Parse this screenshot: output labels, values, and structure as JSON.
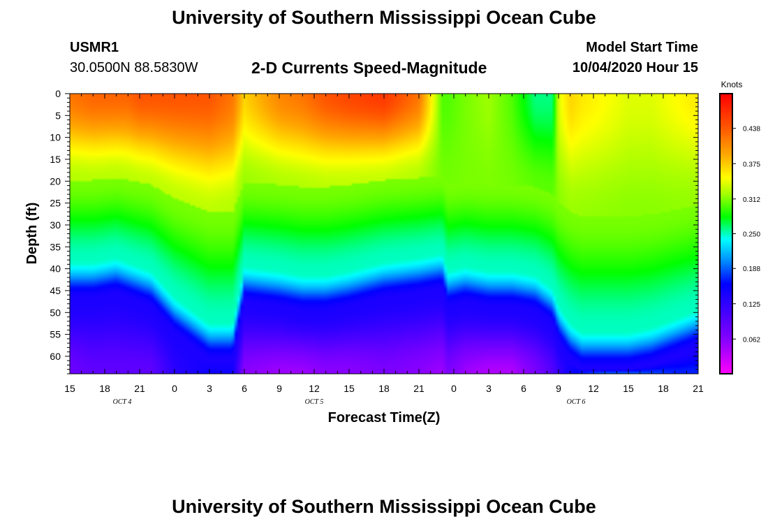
{
  "header": {
    "title_top": "University of Southern Mississippi Ocean Cube",
    "title_bottom": "University of Southern Mississippi Ocean Cube",
    "station_id": "USMR1",
    "coords": "30.0500N 88.5830W",
    "subtitle": "2-D Currents Speed-Magnitude",
    "model_start_label": "Model Start Time",
    "model_start_value": "10/04/2020 Hour 15"
  },
  "chart_data": {
    "type": "heatmap",
    "title": "2-D Currents Speed-Magnitude",
    "xlabel": "Forecast Time(Z)",
    "ylabel": "Depth (ft)",
    "x_hours": [
      0,
      3,
      6,
      9,
      12,
      15,
      18,
      21,
      24,
      27,
      30,
      33,
      36,
      39,
      42,
      45,
      48,
      51,
      54
    ],
    "x_tick_labels": [
      "15",
      "18",
      "21",
      "0",
      "3",
      "6",
      "9",
      "12",
      "15",
      "18",
      "21",
      "0",
      "3",
      "6",
      "9",
      "12",
      "15",
      "18",
      "21"
    ],
    "x_range_hours": [
      0,
      54
    ],
    "date_labels": [
      {
        "text": "OCT 4",
        "hour": 4.5
      },
      {
        "text": "OCT 5",
        "hour": 21
      },
      {
        "text": "OCT 6",
        "hour": 43.5
      }
    ],
    "y_ticks": [
      0,
      5,
      10,
      15,
      20,
      25,
      30,
      35,
      40,
      45,
      50,
      55,
      60
    ],
    "y_tick_labels": [
      "0",
      "5",
      "10",
      "15",
      "20",
      "25",
      "30",
      "35",
      "40",
      "45",
      "50",
      "55",
      "60"
    ],
    "y_range_ft": [
      0,
      64
    ],
    "colorbar": {
      "unit": "Knots",
      "range": [
        0.0,
        0.5
      ],
      "ticks": [
        0.062,
        0.125,
        0.188,
        0.25,
        0.312,
        0.375,
        0.438
      ],
      "tick_labels": [
        "0.062",
        "0.125",
        "0.188",
        "0.250",
        "0.312",
        "0.375",
        "0.438"
      ]
    },
    "speed_profile": {
      "description": "surface speed, speed at 63 ft, and depth (ft) of the 0.25-knot transition, by forecast hour",
      "hours": [
        0,
        2,
        4,
        5,
        6,
        7,
        9,
        12,
        14,
        15,
        18,
        20,
        22,
        24,
        27,
        30,
        32,
        32.5,
        34,
        36,
        38,
        40,
        41.5,
        42,
        43,
        44,
        46,
        48,
        50,
        52,
        54
      ],
      "surface": [
        0.42,
        0.43,
        0.43,
        0.43,
        0.44,
        0.44,
        0.44,
        0.44,
        0.42,
        0.37,
        0.41,
        0.42,
        0.44,
        0.45,
        0.46,
        0.42,
        0.3,
        0.3,
        0.31,
        0.32,
        0.3,
        0.26,
        0.26,
        0.34,
        0.37,
        0.36,
        0.35,
        0.34,
        0.34,
        0.35,
        0.36
      ],
      "bottom": [
        0.08,
        0.09,
        0.09,
        0.09,
        0.09,
        0.09,
        0.13,
        0.15,
        0.15,
        0.06,
        0.05,
        0.05,
        0.06,
        0.06,
        0.07,
        0.06,
        0.05,
        0.07,
        0.05,
        0.04,
        0.04,
        0.07,
        0.1,
        0.12,
        0.15,
        0.17,
        0.19,
        0.19,
        0.18,
        0.17,
        0.17
      ],
      "transition_depth": [
        38,
        38,
        37,
        38,
        39,
        40,
        46,
        52,
        52,
        39,
        40,
        41,
        41,
        40,
        38,
        37,
        36,
        40,
        39,
        40,
        40,
        41,
        44,
        48,
        52,
        54,
        54,
        54,
        53,
        51,
        49
      ]
    }
  }
}
